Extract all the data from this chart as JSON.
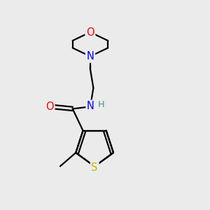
{
  "bg_color": "#ebebeb",
  "bond_color": "#000000",
  "atom_colors": {
    "S": "#c8b400",
    "O": "#ff0000",
    "N": "#0000ff",
    "H": "#4a9090",
    "C": "#000000"
  },
  "figsize": [
    3.0,
    3.0
  ],
  "dpi": 100,
  "lw": 1.6,
  "fontsize": 10.5,
  "xlim": [
    0,
    10
  ],
  "ylim": [
    0,
    10
  ]
}
